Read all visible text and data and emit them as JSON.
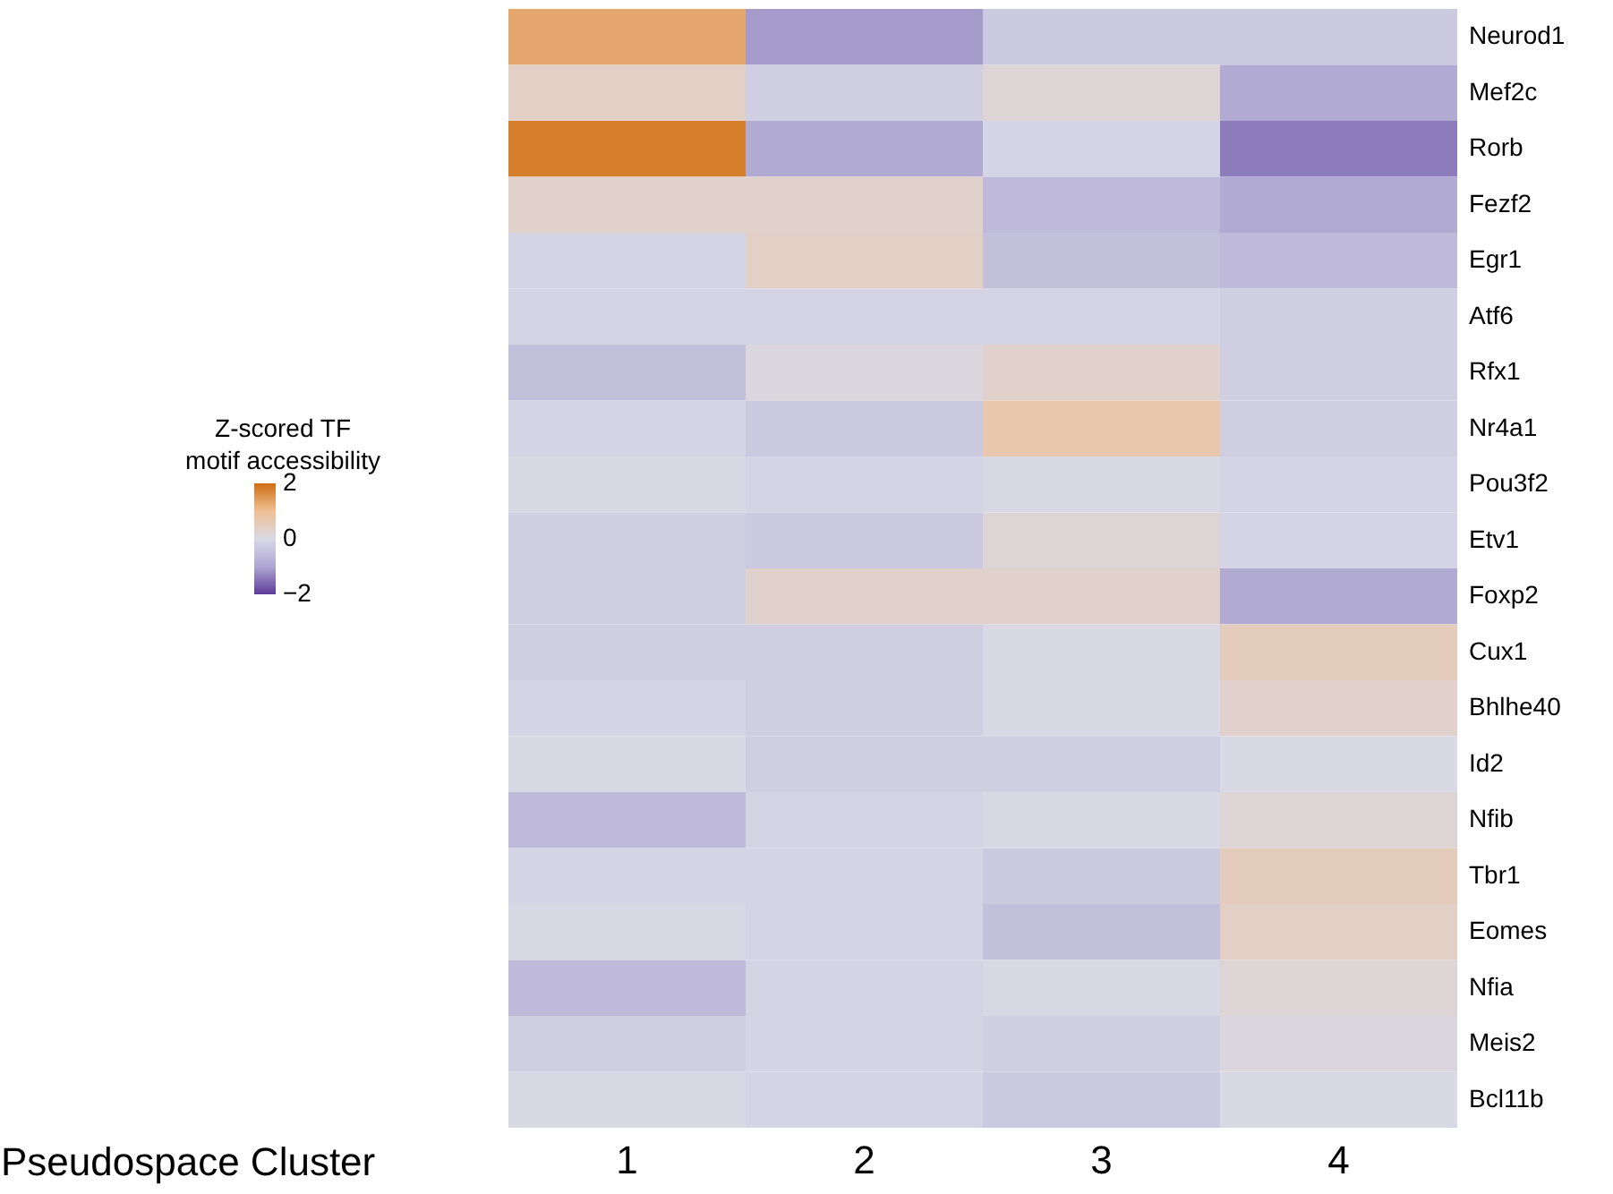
{
  "chart_data": {
    "type": "heatmap",
    "xlabel": "Pseudospace Cluster",
    "clabel": "Z-scored TF\nmotif accessibility",
    "categories": [
      "1",
      "2",
      "3",
      "4"
    ],
    "y_categories": [
      "Neurod1",
      "Mef2c",
      "Rorb",
      "Fezf2",
      "Egr1",
      "Atf6",
      "Rfx1",
      "Nr4a1",
      "Pou3f2",
      "Etv1",
      "Foxp2",
      "Cux1",
      "Bhlhe40",
      "Id2",
      "Nfib",
      "Tbr1",
      "Eomes",
      "Nfia",
      "Meis2",
      "Bcl11b"
    ],
    "cells": [
      [
        1.3,
        -1.1,
        -0.3,
        -0.3
      ],
      [
        0.4,
        -0.2,
        0.2,
        -0.9
      ],
      [
        1.8,
        -0.9,
        -0.1,
        -1.4
      ],
      [
        0.3,
        0.3,
        -0.6,
        -0.9
      ],
      [
        -0.1,
        0.4,
        -0.5,
        -0.6
      ],
      [
        -0.1,
        -0.1,
        -0.1,
        -0.2
      ],
      [
        -0.5,
        0.1,
        0.3,
        -0.2
      ],
      [
        -0.1,
        -0.3,
        0.7,
        -0.2
      ],
      [
        0.0,
        -0.1,
        0.0,
        -0.1
      ],
      [
        -0.2,
        -0.3,
        0.2,
        -0.1
      ],
      [
        -0.2,
        0.3,
        0.3,
        -0.9
      ],
      [
        -0.2,
        -0.2,
        0.0,
        0.5
      ],
      [
        -0.1,
        -0.2,
        0.0,
        0.3
      ],
      [
        0.0,
        -0.2,
        -0.2,
        0.0
      ],
      [
        -0.6,
        -0.1,
        0.0,
        0.2
      ],
      [
        -0.1,
        -0.1,
        -0.3,
        0.5
      ],
      [
        0.0,
        -0.1,
        -0.5,
        0.4
      ],
      [
        -0.6,
        -0.1,
        0.0,
        0.2
      ],
      [
        -0.2,
        -0.1,
        -0.2,
        0.1
      ],
      [
        0.0,
        -0.1,
        -0.3,
        0.0
      ]
    ],
    "clim": [
      -2,
      2
    ],
    "cticks": [
      {
        "value": -2,
        "label": "−2"
      },
      0,
      2
    ]
  }
}
